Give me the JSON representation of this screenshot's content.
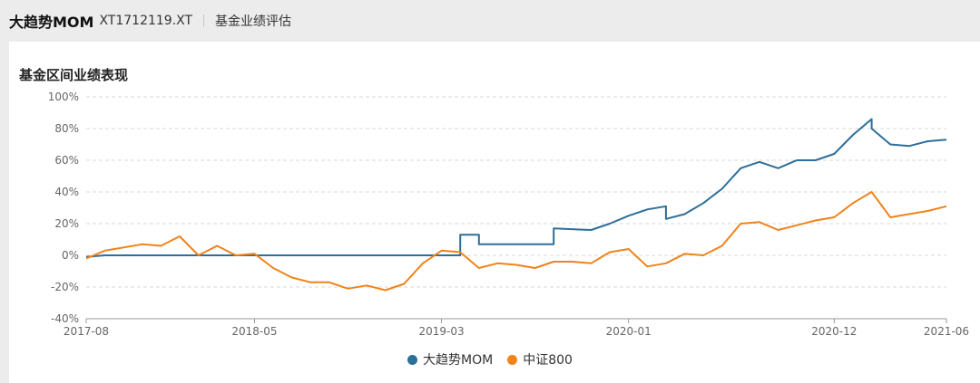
{
  "header": {
    "fund_name": "大趋势MOM",
    "fund_code": "XT1712119.XT",
    "section": "基金业绩评估"
  },
  "panel": {
    "title": "基金区间业绩表现"
  },
  "colors": {
    "fund": "#2b6f9a",
    "index": "#f0831a",
    "grid": "#d9d9d9",
    "axis": "#999999",
    "tick_text": "#666666"
  },
  "chart_data": {
    "type": "line",
    "title": "基金区间业绩表现",
    "xlabel": "",
    "ylabel": "",
    "x_range": [
      "2017-08",
      "2021-06"
    ],
    "x_ticks": [
      "2017-08",
      "2018-05",
      "2019-03",
      "2020-01",
      "2020-12",
      "2021-06"
    ],
    "y_ticks": [
      "100%",
      "80%",
      "60%",
      "40%",
      "20%",
      "0%",
      "-20%",
      "-40%"
    ],
    "ylim": [
      -40,
      100
    ],
    "grid": true,
    "legend_position": "bottom-center",
    "series": [
      {
        "name": "大趋势MOM",
        "color": "#2b6f9a",
        "points": [
          [
            "2017-08",
            -1
          ],
          [
            "2017-09",
            0
          ],
          [
            "2019-04",
            0
          ],
          [
            "2019-04",
            13
          ],
          [
            "2019-05",
            13
          ],
          [
            "2019-05",
            7
          ],
          [
            "2019-09",
            7
          ],
          [
            "2019-09",
            17
          ],
          [
            "2019-11",
            16
          ],
          [
            "2019-12",
            20
          ],
          [
            "2020-01",
            25
          ],
          [
            "2020-02",
            29
          ],
          [
            "2020-03",
            31
          ],
          [
            "2020-03",
            23
          ],
          [
            "2020-04",
            26
          ],
          [
            "2020-05",
            33
          ],
          [
            "2020-06",
            42
          ],
          [
            "2020-07",
            55
          ],
          [
            "2020-08",
            59
          ],
          [
            "2020-09",
            55
          ],
          [
            "2020-10",
            60
          ],
          [
            "2020-11",
            60
          ],
          [
            "2020-12",
            64
          ],
          [
            "2021-01",
            76
          ],
          [
            "2021-02",
            86
          ],
          [
            "2021-02",
            80
          ],
          [
            "2021-03",
            70
          ],
          [
            "2021-04",
            69
          ],
          [
            "2021-05",
            72
          ],
          [
            "2021-06",
            73
          ]
        ]
      },
      {
        "name": "中证800",
        "color": "#f0831a",
        "points": [
          [
            "2017-08",
            -2
          ],
          [
            "2017-09",
            3
          ],
          [
            "2017-11",
            7
          ],
          [
            "2017-12",
            6
          ],
          [
            "2018-01",
            12
          ],
          [
            "2018-02",
            0
          ],
          [
            "2018-03",
            6
          ],
          [
            "2018-04",
            0
          ],
          [
            "2018-05",
            1
          ],
          [
            "2018-06",
            -8
          ],
          [
            "2018-07",
            -14
          ],
          [
            "2018-08",
            -17
          ],
          [
            "2018-09",
            -17
          ],
          [
            "2018-10",
            -21
          ],
          [
            "2018-11",
            -19
          ],
          [
            "2018-12",
            -22
          ],
          [
            "2019-01",
            -18
          ],
          [
            "2019-02",
            -5
          ],
          [
            "2019-03",
            3
          ],
          [
            "2019-04",
            2
          ],
          [
            "2019-05",
            -8
          ],
          [
            "2019-06",
            -5
          ],
          [
            "2019-07",
            -6
          ],
          [
            "2019-08",
            -8
          ],
          [
            "2019-09",
            -4
          ],
          [
            "2019-10",
            -4
          ],
          [
            "2019-11",
            -5
          ],
          [
            "2019-12",
            2
          ],
          [
            "2020-01",
            4
          ],
          [
            "2020-02",
            -7
          ],
          [
            "2020-03",
            -5
          ],
          [
            "2020-04",
            1
          ],
          [
            "2020-05",
            0
          ],
          [
            "2020-06",
            6
          ],
          [
            "2020-07",
            20
          ],
          [
            "2020-08",
            21
          ],
          [
            "2020-09",
            16
          ],
          [
            "2020-10",
            19
          ],
          [
            "2020-11",
            22
          ],
          [
            "2020-12",
            24
          ],
          [
            "2021-01",
            33
          ],
          [
            "2021-02",
            40
          ],
          [
            "2021-03",
            24
          ],
          [
            "2021-04",
            26
          ],
          [
            "2021-05",
            28
          ],
          [
            "2021-06",
            31
          ]
        ]
      }
    ]
  }
}
